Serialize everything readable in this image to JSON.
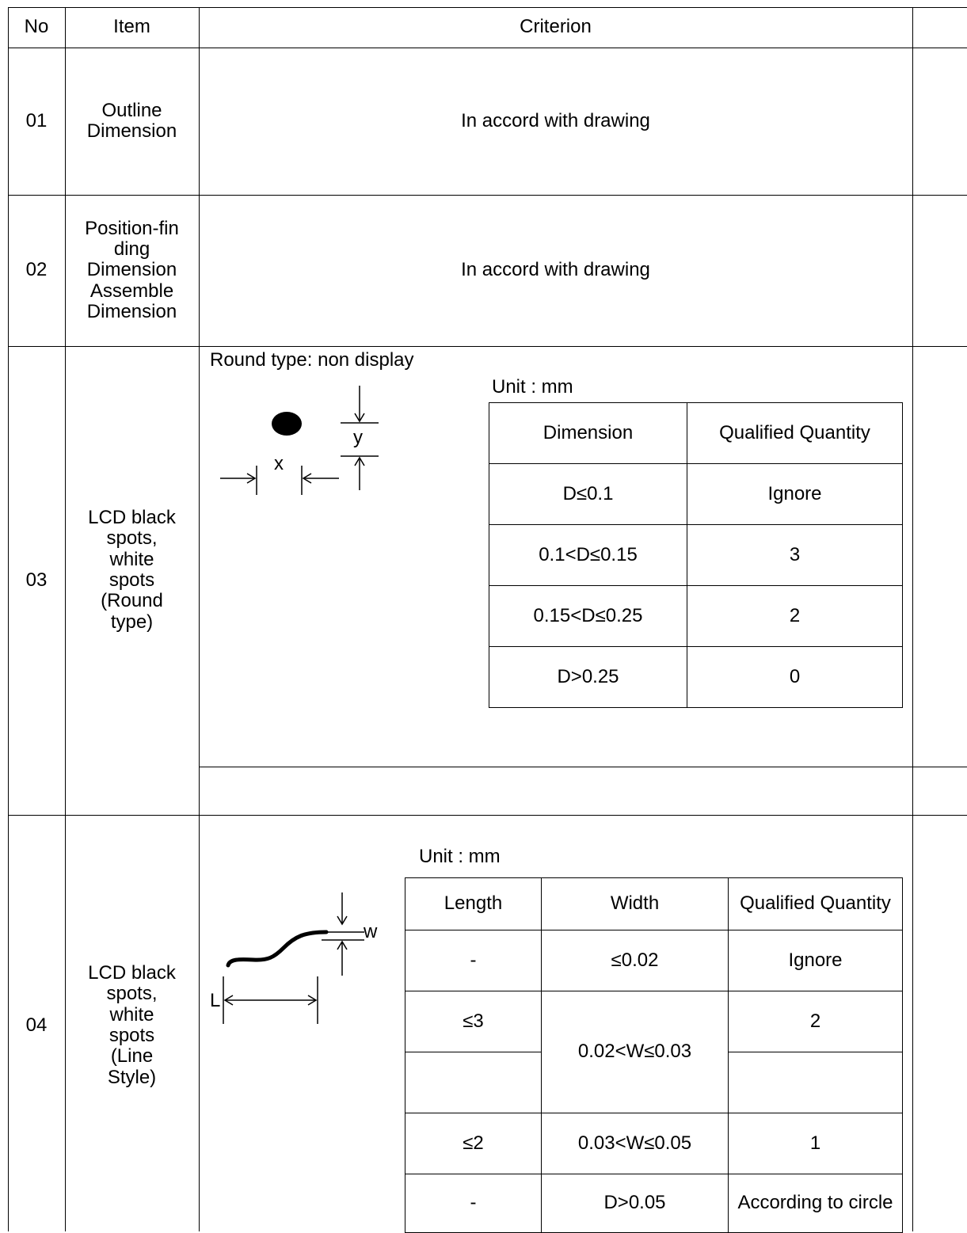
{
  "header": {
    "no": "No",
    "item": "Item",
    "criterion": "Criterion"
  },
  "rows": [
    {
      "no": "01",
      "item": "Outline Dimension",
      "criterion": "In accord with drawing"
    },
    {
      "no": "02",
      "item_lines": [
        "Position-fin",
        "ding",
        "Dimension",
        "Assemble",
        "Dimension"
      ],
      "criterion": "In accord with drawing"
    },
    {
      "no": "03",
      "item_lines": [
        "LCD black",
        "spots,",
        "white",
        "spots",
        "(Round",
        "type)"
      ],
      "caption": "Round type: non display",
      "unit": "Unit : mm",
      "diagram_labels": {
        "x": "x",
        "y": "y"
      },
      "table": {
        "headers": [
          "Dimension",
          "Qualified Quantity"
        ],
        "rows": [
          [
            "D≤0.1",
            "Ignore"
          ],
          [
            "0.1<D≤0.15",
            "3"
          ],
          [
            "0.15<D≤0.25",
            "2"
          ],
          [
            "D>0.25",
            "0"
          ]
        ]
      }
    },
    {
      "no": "04",
      "item_lines": [
        "LCD black",
        "spots,",
        "white",
        "spots",
        "(Line",
        "Style)"
      ],
      "unit": "Unit : mm",
      "diagram_labels": {
        "w": "w",
        "l": "L"
      },
      "table": {
        "headers": [
          "Length",
          "Width",
          "Qualified Quantity"
        ],
        "r1": [
          "-",
          "≤0.02",
          "Ignore"
        ],
        "r2_len": "≤3",
        "r2_qty": "2",
        "merged_width": "0.02<W≤0.03",
        "r4": [
          "≤2",
          "0.03<W≤0.05",
          "1"
        ],
        "r5": [
          "-",
          "D>0.05",
          "According to circle"
        ]
      }
    }
  ]
}
